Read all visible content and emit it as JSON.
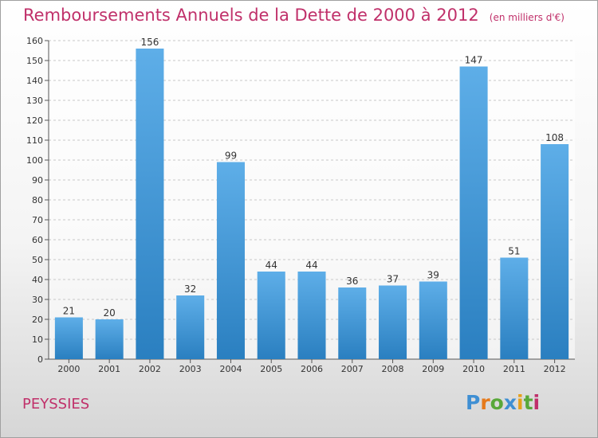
{
  "title": "Remboursements Annuels de la Dette de 2000 à 2012",
  "unit": "(en milliers d'€)",
  "commune": "PEYSSIES",
  "logo": {
    "text": "Proxiti",
    "letter_colors": [
      "#3f8fd3",
      "#e67a1b",
      "#59a83a",
      "#3f8fd3",
      "#e6a11b",
      "#59a83a",
      "#c0306a"
    ]
  },
  "colors": {
    "bar_top": "#5eaee8",
    "bar_bottom": "#2a7fc0",
    "title": "#c0306a"
  },
  "chart_data": {
    "type": "bar",
    "categories": [
      "2000",
      "2001",
      "2002",
      "2003",
      "2004",
      "2005",
      "2006",
      "2007",
      "2008",
      "2009",
      "2010",
      "2011",
      "2012"
    ],
    "values": [
      21,
      20,
      156,
      32,
      99,
      44,
      44,
      36,
      37,
      39,
      147,
      51,
      108
    ],
    "title": "Remboursements Annuels de la Dette de 2000 à 2012",
    "xlabel": "",
    "ylabel": "",
    "ylim": [
      0,
      160
    ],
    "yticks": [
      0,
      10,
      20,
      30,
      40,
      50,
      60,
      70,
      80,
      90,
      100,
      110,
      120,
      130,
      140,
      150,
      160
    ],
    "grid": true,
    "data_labels": true
  }
}
